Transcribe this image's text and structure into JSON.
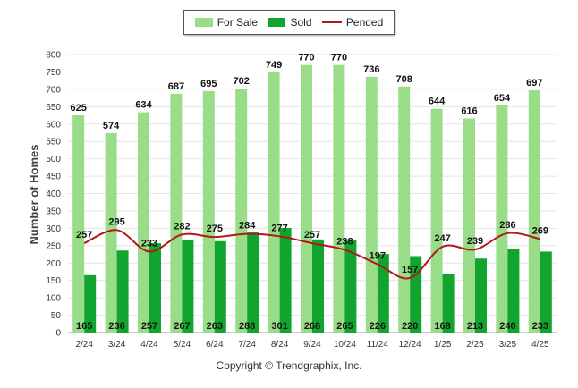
{
  "chart_data": {
    "type": "bar",
    "categories": [
      "2/24",
      "3/24",
      "4/24",
      "5/24",
      "6/24",
      "7/24",
      "8/24",
      "9/24",
      "10/24",
      "11/24",
      "12/24",
      "1/25",
      "2/25",
      "3/25",
      "4/25"
    ],
    "series": [
      {
        "name": "For Sale",
        "type": "bar",
        "color": "#99dd88",
        "values": [
          625,
          574,
          634,
          687,
          695,
          702,
          749,
          770,
          770,
          736,
          708,
          644,
          616,
          654,
          697
        ]
      },
      {
        "name": "Sold",
        "type": "bar",
        "color": "#11a52f",
        "values": [
          165,
          236,
          257,
          267,
          263,
          288,
          301,
          268,
          265,
          226,
          220,
          168,
          213,
          240,
          233
        ]
      },
      {
        "name": "Pended",
        "type": "line",
        "color": "#b21818",
        "values": [
          257,
          295,
          233,
          282,
          275,
          284,
          277,
          257,
          238,
          197,
          157,
          247,
          239,
          286,
          269
        ]
      }
    ],
    "ylabel": "Number of Homes",
    "ylim": [
      0,
      800
    ],
    "yticks": [
      0,
      50,
      100,
      150,
      200,
      250,
      300,
      350,
      400,
      450,
      500,
      550,
      600,
      650,
      700,
      750,
      800
    ],
    "grid": true,
    "legend": "top-center"
  },
  "legend": {
    "for_sale": "For Sale",
    "sold": "Sold",
    "pended": "Pended"
  },
  "footer": {
    "copyright": "Copyright © Trendgraphix, Inc."
  }
}
